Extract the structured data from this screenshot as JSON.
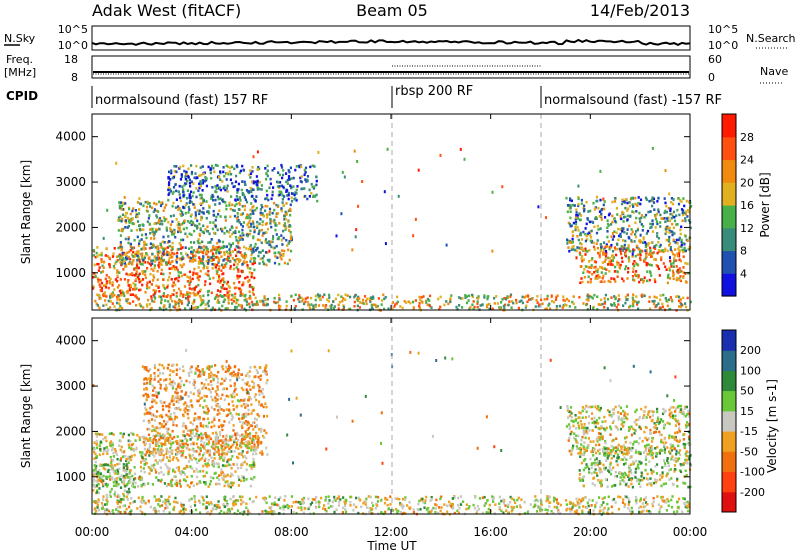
{
  "header": {
    "station": "Adak West (fitACF)",
    "beam": "Beam 05",
    "date": "14/Feb/2013"
  },
  "top_panels": {
    "nsky_label": "N.Sky",
    "nsky_tick_hi": "10^5",
    "nsky_tick_lo": "10^0",
    "nsearch_label": "N.Search",
    "nsearch_tick_hi": "10^5",
    "nsearch_tick_lo": "10^0",
    "freq_label_1": "Freq.",
    "freq_label_2": "[MHz]",
    "freq_tick_hi": "18",
    "freq_tick_lo": "8",
    "nave_label": "Nave",
    "nave_tick_hi": "60",
    "nave_tick_lo": "0",
    "cpid_label": "CPID",
    "cpid_segments": [
      {
        "start_hour": 0,
        "end_hour": 12,
        "label": "normalsound (fast) 157 RF"
      },
      {
        "start_hour": 12,
        "end_hour": 18,
        "label": "rbsp 200 RF"
      },
      {
        "start_hour": 18,
        "end_hour": 24,
        "label": "normalsound (fast) -157 RF"
      }
    ]
  },
  "axes": {
    "ylabel": "Slant Range [km]",
    "xlabel": "Time UT",
    "x_ticks": [
      "00:00",
      "04:00",
      "08:00",
      "12:00",
      "16:00",
      "20:00",
      "00:00"
    ],
    "y_ticks": [
      "1000",
      "2000",
      "3000",
      "4000"
    ]
  },
  "colorbars": {
    "power": {
      "label": "Power [dB]",
      "ticks": [
        "4",
        "8",
        "12",
        "16",
        "20",
        "24",
        "28"
      ],
      "colors": [
        "#1010e0",
        "#2050b0",
        "#3a8c7a",
        "#48b048",
        "#e0b020",
        "#f08a10",
        "#ff5010",
        "#ff1a00"
      ]
    },
    "velocity": {
      "label": "Velocity [m s-1]",
      "ticks": [
        "200",
        "100",
        "50",
        "15",
        "-15",
        "-50",
        "-100",
        "-200"
      ],
      "colors": [
        "#1a2fb0",
        "#2a6e8a",
        "#2e8a3a",
        "#68c838",
        "#c8c8c0",
        "#f0a020",
        "#f07010",
        "#ff4010",
        "#e01010"
      ]
    }
  },
  "chart_data": [
    {
      "type": "heatmap",
      "title": "Power",
      "x_unit": "hours UT",
      "y_unit": "km",
      "xlim": [
        0,
        24
      ],
      "ylim": [
        180,
        4500
      ],
      "dashed_x_lines": [
        12,
        18
      ],
      "regions": [
        {
          "x0": 0.0,
          "x1": 6.5,
          "y0": 500,
          "y1": 1600,
          "value": 24
        },
        {
          "x0": 1.0,
          "x1": 8.0,
          "y0": 1200,
          "y1": 2600,
          "value": 14
        },
        {
          "x0": 3.0,
          "x1": 9.0,
          "y0": 2600,
          "y1": 3400,
          "value": 8
        },
        {
          "x0": 19.5,
          "x1": 24.0,
          "y0": 800,
          "y1": 1600,
          "value": 22
        },
        {
          "x0": 19.0,
          "x1": 24.0,
          "y0": 1500,
          "y1": 2700,
          "value": 12
        },
        {
          "x0": 0.0,
          "x1": 24.0,
          "y0": 200,
          "y1": 550,
          "value": 18
        }
      ]
    },
    {
      "type": "heatmap",
      "title": "Velocity",
      "x_unit": "hours UT",
      "y_unit": "km",
      "xlim": [
        0,
        24
      ],
      "ylim": [
        180,
        4500
      ],
      "dashed_x_lines": [
        12,
        18
      ],
      "regions": [
        {
          "x0": 0.0,
          "x1": 6.5,
          "y0": 800,
          "y1": 2000,
          "value": 0
        },
        {
          "x0": 0.0,
          "x1": 1.5,
          "y0": 600,
          "y1": 1300,
          "value": 25
        },
        {
          "x0": 2.0,
          "x1": 7.0,
          "y0": 1500,
          "y1": 3500,
          "value": -40
        },
        {
          "x0": 19.5,
          "x1": 24.0,
          "y0": 800,
          "y1": 1700,
          "value": 20
        },
        {
          "x0": 19.0,
          "x1": 24.0,
          "y0": 1500,
          "y1": 2600,
          "value": 0
        },
        {
          "x0": 0.0,
          "x1": 24.0,
          "y0": 200,
          "y1": 600,
          "value": 0
        }
      ]
    }
  ]
}
